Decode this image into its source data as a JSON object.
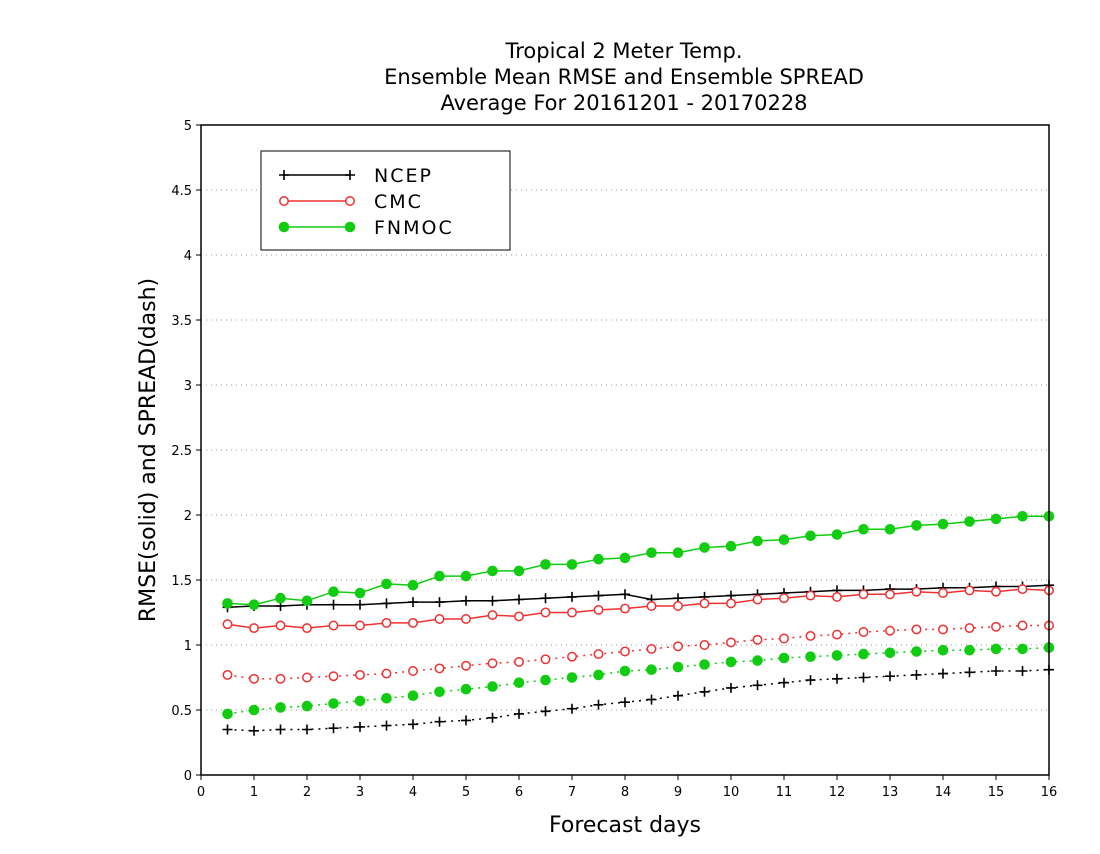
{
  "chart_data": {
    "type": "line",
    "title_lines": [
      "Tropical 2 Meter Temp.",
      "Ensemble Mean RMSE and Ensemble SPREAD",
      "Average For 20161201 - 20170228"
    ],
    "xlabel": "Forecast days",
    "ylabel": "RMSE(solid) and SPREAD(dash)",
    "xlim": [
      0,
      16
    ],
    "ylim": [
      0,
      5
    ],
    "x_ticks": [
      "0",
      "1",
      "2",
      "3",
      "4",
      "5",
      "6",
      "7",
      "8",
      "9",
      "10",
      "11",
      "12",
      "13",
      "14",
      "15",
      "16"
    ],
    "y_ticks": [
      "0",
      "0.5",
      "1",
      "1.5",
      "2",
      "2.5",
      "3",
      "3.5",
      "4",
      "4.5",
      "5"
    ],
    "grid": "horizontal dotted",
    "legend_position": "top-left",
    "x": [
      0.5,
      1,
      1.5,
      2,
      2.5,
      3,
      3.5,
      4,
      4.5,
      5,
      5.5,
      6,
      6.5,
      7,
      7.5,
      8,
      8.5,
      9,
      9.5,
      10,
      10.5,
      11,
      11.5,
      12,
      12.5,
      13,
      13.5,
      14,
      14.5,
      15,
      15.5,
      16
    ],
    "series": [
      {
        "name": "NCEP",
        "color": "#000000",
        "marker": "plus",
        "rmse": [
          1.29,
          1.3,
          1.3,
          1.31,
          1.31,
          1.31,
          1.32,
          1.33,
          1.33,
          1.34,
          1.34,
          1.35,
          1.36,
          1.37,
          1.38,
          1.39,
          1.35,
          1.36,
          1.37,
          1.38,
          1.39,
          1.4,
          1.41,
          1.42,
          1.42,
          1.43,
          1.43,
          1.44,
          1.44,
          1.45,
          1.45,
          1.46
        ],
        "spread": [
          0.35,
          0.34,
          0.35,
          0.35,
          0.36,
          0.37,
          0.38,
          0.39,
          0.41,
          0.42,
          0.44,
          0.47,
          0.49,
          0.51,
          0.54,
          0.56,
          0.58,
          0.61,
          0.64,
          0.67,
          0.69,
          0.71,
          0.73,
          0.74,
          0.75,
          0.76,
          0.77,
          0.78,
          0.79,
          0.8,
          0.8,
          0.81
        ]
      },
      {
        "name": "CMC",
        "color": "#ee3030",
        "marker": "open-circle",
        "rmse": [
          1.16,
          1.13,
          1.15,
          1.13,
          1.15,
          1.15,
          1.17,
          1.17,
          1.2,
          1.2,
          1.23,
          1.22,
          1.25,
          1.25,
          1.27,
          1.28,
          1.3,
          1.3,
          1.32,
          1.32,
          1.35,
          1.36,
          1.38,
          1.37,
          1.39,
          1.39,
          1.41,
          1.4,
          1.42,
          1.41,
          1.43,
          1.42
        ],
        "spread": [
          0.77,
          0.74,
          0.74,
          0.75,
          0.76,
          0.77,
          0.78,
          0.8,
          0.82,
          0.84,
          0.86,
          0.87,
          0.89,
          0.91,
          0.93,
          0.95,
          0.97,
          0.99,
          1.0,
          1.02,
          1.04,
          1.05,
          1.07,
          1.08,
          1.1,
          1.11,
          1.12,
          1.12,
          1.13,
          1.14,
          1.15,
          1.15
        ]
      },
      {
        "name": "FNMOC",
        "color": "#11cc11",
        "marker": "filled-circle",
        "rmse": [
          1.32,
          1.31,
          1.36,
          1.34,
          1.41,
          1.4,
          1.47,
          1.46,
          1.53,
          1.53,
          1.57,
          1.57,
          1.62,
          1.62,
          1.66,
          1.67,
          1.71,
          1.71,
          1.75,
          1.76,
          1.8,
          1.81,
          1.84,
          1.85,
          1.89,
          1.89,
          1.92,
          1.93,
          1.95,
          1.97,
          1.99,
          1.99
        ],
        "spread": [
          0.47,
          0.5,
          0.52,
          0.53,
          0.55,
          0.57,
          0.59,
          0.61,
          0.64,
          0.66,
          0.68,
          0.71,
          0.73,
          0.75,
          0.77,
          0.8,
          0.81,
          0.83,
          0.85,
          0.87,
          0.88,
          0.9,
          0.91,
          0.92,
          0.93,
          0.94,
          0.95,
          0.96,
          0.96,
          0.97,
          0.97,
          0.98
        ]
      }
    ]
  }
}
